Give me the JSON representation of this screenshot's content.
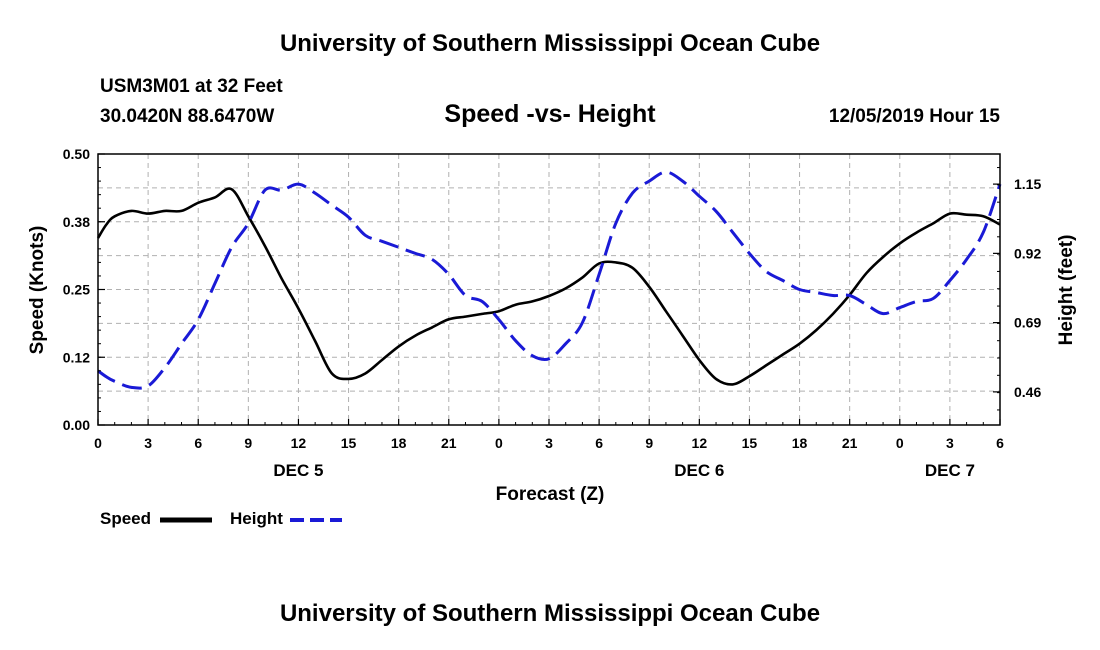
{
  "header": {
    "title": "University of Southern Mississippi Ocean Cube",
    "station": "USM3M01 at 32 Feet",
    "coordinates": "30.0420N 88.6470W",
    "subtitle": "Speed -vs- Height",
    "timestamp": "12/05/2019 Hour 15"
  },
  "footer": {
    "title": "University of Southern Mississippi Ocean Cube"
  },
  "legend": {
    "speed_label": "Speed",
    "height_label": "Height"
  },
  "colors": {
    "speed": "#000000",
    "height": "#1a1ad6",
    "grid": "#b0b0b0"
  },
  "chart_data": {
    "type": "line",
    "xlabel": "Forecast (Z)",
    "ylabel_left": "Speed (Knots)",
    "ylabel_right": "Height (feet)",
    "xlim": [
      0,
      54
    ],
    "ylim_left": [
      0,
      0.5
    ],
    "ylim_right": [
      0.35,
      1.25
    ],
    "x_ticks": [
      0,
      3,
      6,
      9,
      12,
      15,
      18,
      21,
      24,
      27,
      30,
      33,
      36,
      39,
      42,
      45,
      48,
      51,
      54
    ],
    "x_tick_labels": [
      "0",
      "3",
      "6",
      "9",
      "12",
      "15",
      "18",
      "21",
      "0",
      "3",
      "6",
      "9",
      "12",
      "15",
      "18",
      "21",
      "0",
      "3",
      "6"
    ],
    "day_labels": [
      {
        "x": 12,
        "label": "DEC 5"
      },
      {
        "x": 36,
        "label": "DEC 6"
      },
      {
        "x": 51,
        "label": "DEC 7"
      }
    ],
    "y_ticks_left": [
      0.0,
      0.125,
      0.25,
      0.375,
      0.5
    ],
    "y_tick_labels_left": [
      "0.00",
      "0.12",
      "0.25",
      "0.38",
      "0.50"
    ],
    "y_ticks_right": [
      0.46,
      0.69,
      0.92,
      1.15
    ],
    "y_tick_labels_right": [
      "0.46",
      "0.69",
      "0.92",
      "1.15"
    ],
    "grid": true,
    "series": [
      {
        "name": "Speed",
        "axis": "left",
        "style": "solid",
        "x": [
          0,
          0.5,
          1,
          2,
          3,
          4,
          5,
          6,
          7,
          8,
          9,
          10,
          11,
          12,
          13,
          14,
          15,
          16,
          17,
          18,
          19,
          20,
          21,
          22,
          23,
          24,
          25,
          26,
          27,
          28,
          29,
          30,
          31,
          32,
          33,
          34,
          35,
          36,
          37,
          38,
          39,
          40,
          41,
          42,
          43,
          44,
          45,
          46,
          47,
          48,
          49,
          50,
          51,
          52,
          53,
          54
        ],
        "values": [
          0.345,
          0.37,
          0.385,
          0.395,
          0.39,
          0.395,
          0.395,
          0.41,
          0.42,
          0.435,
          0.385,
          0.33,
          0.27,
          0.215,
          0.155,
          0.095,
          0.085,
          0.095,
          0.12,
          0.145,
          0.165,
          0.18,
          0.195,
          0.2,
          0.205,
          0.21,
          0.222,
          0.228,
          0.238,
          0.252,
          0.272,
          0.298,
          0.3,
          0.29,
          0.255,
          0.21,
          0.165,
          0.12,
          0.085,
          0.075,
          0.09,
          0.11,
          0.13,
          0.15,
          0.175,
          0.205,
          0.24,
          0.28,
          0.31,
          0.335,
          0.355,
          0.372,
          0.39,
          0.388,
          0.385,
          0.37
        ]
      },
      {
        "name": "Height",
        "axis": "right",
        "style": "dashed",
        "x": [
          0,
          0.5,
          1,
          2,
          3,
          4,
          5,
          6,
          7,
          8,
          9,
          10,
          11,
          12,
          13,
          14,
          15,
          16,
          17,
          18,
          19,
          20,
          21,
          22,
          23,
          24,
          25,
          26,
          27,
          28,
          29,
          30,
          31,
          32,
          33,
          34,
          35,
          36,
          37,
          38,
          39,
          40,
          41,
          42,
          43,
          44,
          45,
          46,
          47,
          48,
          49,
          50,
          51,
          52,
          53,
          54
        ],
        "values": [
          0.53,
          0.51,
          0.495,
          0.475,
          0.48,
          0.54,
          0.62,
          0.7,
          0.82,
          0.94,
          1.02,
          1.13,
          1.13,
          1.15,
          1.12,
          1.08,
          1.04,
          0.98,
          0.96,
          0.94,
          0.92,
          0.9,
          0.85,
          0.78,
          0.76,
          0.7,
          0.63,
          0.58,
          0.57,
          0.62,
          0.69,
          0.85,
          1.02,
          1.12,
          1.16,
          1.19,
          1.16,
          1.11,
          1.06,
          0.99,
          0.92,
          0.86,
          0.83,
          0.8,
          0.79,
          0.78,
          0.78,
          0.75,
          0.72,
          0.74,
          0.76,
          0.77,
          0.83,
          0.9,
          0.99,
          1.15
        ]
      }
    ]
  }
}
